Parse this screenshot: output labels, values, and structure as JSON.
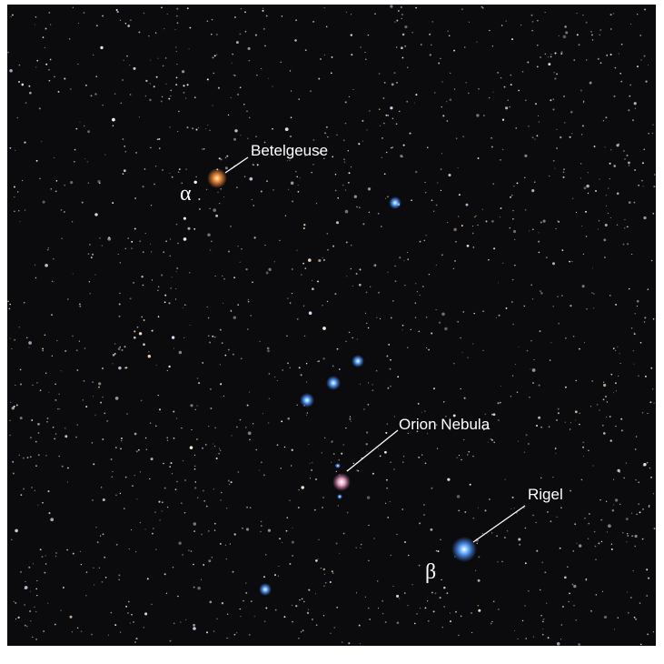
{
  "labels": {
    "betelgeuse": "Betelgeuse",
    "alpha": "α",
    "orion_nebula": "Orion Nebula",
    "rigel": "Rigel",
    "beta": "β"
  }
}
